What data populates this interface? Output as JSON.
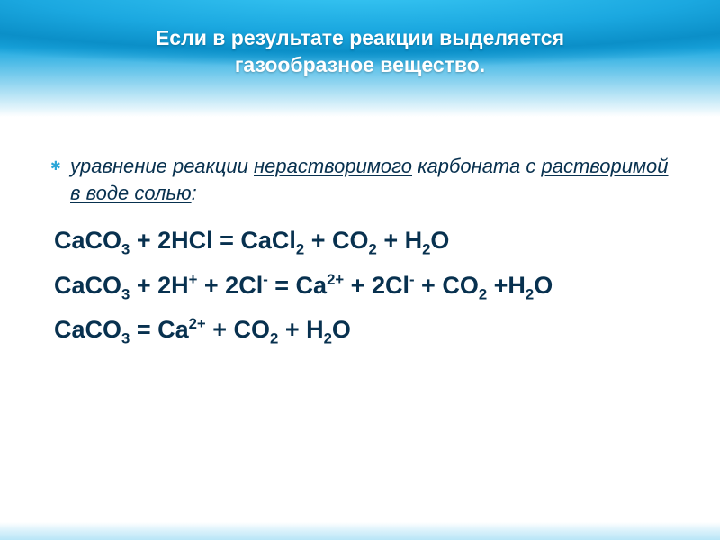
{
  "header": {
    "title_line1": "Если в результате реакции выделяется",
    "title_line2": "газообразное вещество."
  },
  "intro": {
    "prefix": "уравнение реакции ",
    "u1": "нерастворимого",
    "mid": " карбоната с ",
    "u2": "растворимой в воде солью",
    "suffix": ":"
  },
  "equations": {
    "eq1": {
      "lhs1": "CaCO",
      "lhs1_sub": "3",
      "plus1": " + 2HCl = CaCl",
      "p1_sub": "2",
      "plus2": " + CO",
      "p2_sub": "2",
      "plus3": " + H",
      "p3_sub": "2",
      "tail": "O"
    },
    "eq2": {
      "a": "CaCO",
      "a_sub": "3",
      "b": " + 2H",
      "b_sup": "+",
      "c": " + 2Cl",
      "c_sup": "-",
      "d": "  =  Ca",
      "d_sup": "2+",
      "e": " + 2Cl",
      "e_sup": "-",
      "f": " + CO",
      "f_sub": "2",
      "g": " +H",
      "g_sub": "2",
      "tail": "O"
    },
    "eq3": {
      "a": "CaCO",
      "a_sub": "3",
      "b": "  = Ca",
      "b_sup": "2+",
      "c": " + CO",
      "c_sub": "2",
      "d": " + H",
      "d_sub": "2",
      "tail": "O"
    }
  },
  "colors": {
    "text": "#08314f",
    "header_bg_top": "#0b8fc8",
    "header_bg_light": "#3bc9f5",
    "title_color": "#ffffff"
  }
}
